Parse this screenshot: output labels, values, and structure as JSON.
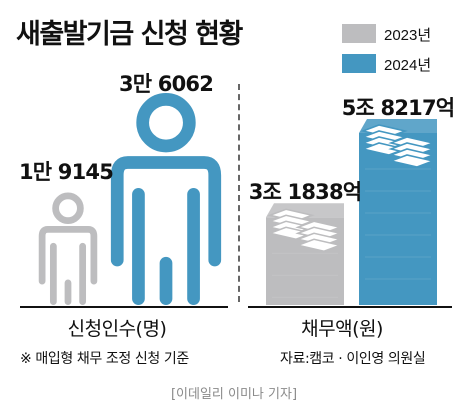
{
  "title": "새출발기금 신청 현황",
  "legend": [
    {
      "label": "2023년",
      "color": "#bdbdbf"
    },
    {
      "label": "2024년",
      "color": "#4497c1"
    }
  ],
  "chart_data": [
    {
      "type": "bar",
      "style": "pictograph-person",
      "xlabel": "신청인수(명)",
      "series": [
        {
          "name": "2023년",
          "values": [
            19145
          ],
          "label": "1만 9145"
        },
        {
          "name": "2024년",
          "values": [
            36062
          ],
          "label": "3만 6062"
        }
      ]
    },
    {
      "type": "bar",
      "style": "pictograph-money-stack",
      "xlabel": "채무액(원)",
      "series": [
        {
          "name": "2023년",
          "values": [
            31838
          ],
          "label": "3조 1838억"
        },
        {
          "name": "2024년",
          "values": [
            58217
          ],
          "label": "5조 8217억"
        }
      ]
    }
  ],
  "footnote": "※ 매입형 채무 조정 신청 기준",
  "source": "자료:캠코 · 이인영 의원실",
  "credit": "[이데일리 이미나 기자]"
}
